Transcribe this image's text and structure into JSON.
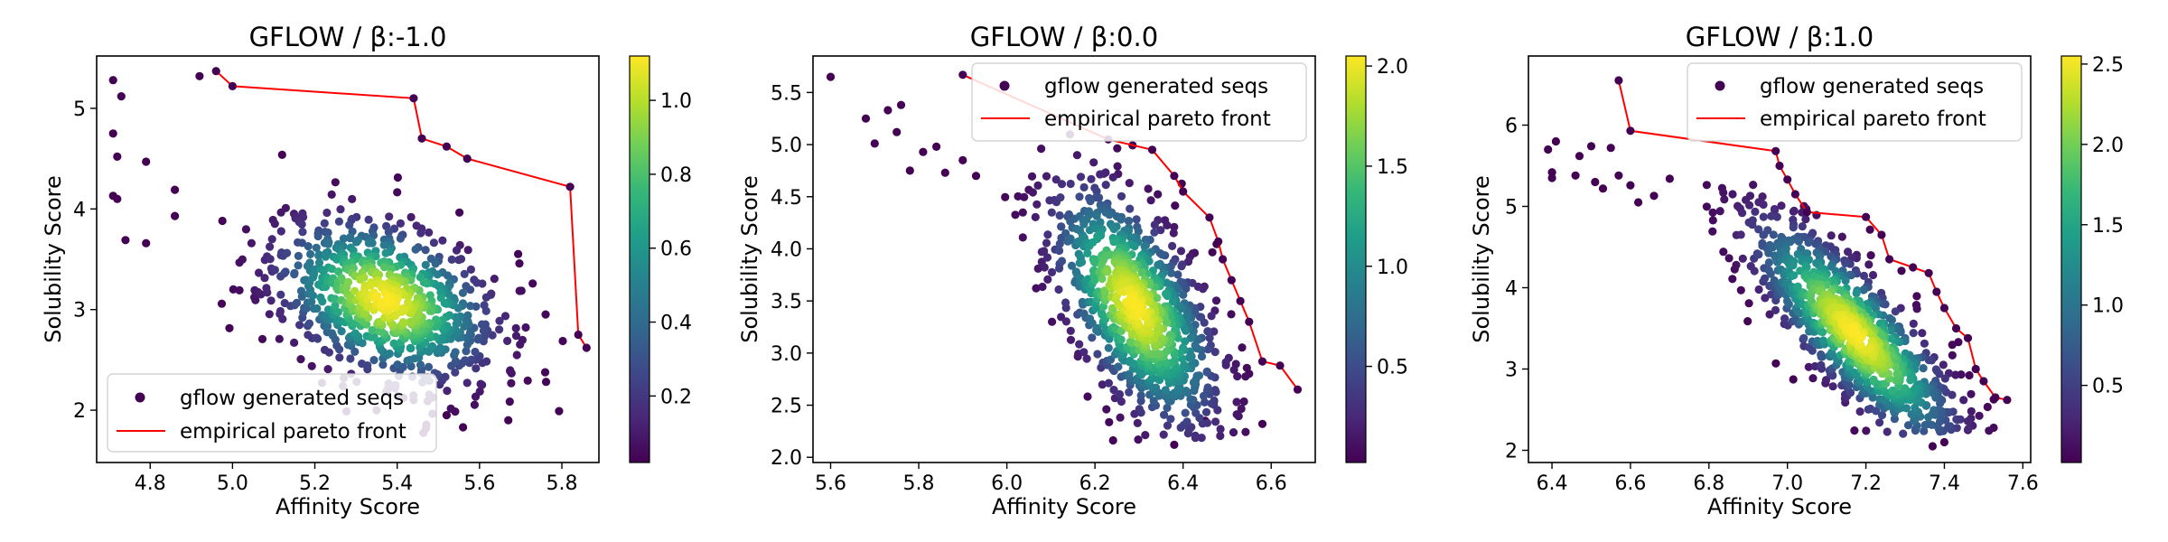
{
  "colormap": [
    "#440154",
    "#482878",
    "#3e4989",
    "#31688e",
    "#26828e",
    "#1f9e89",
    "#35b779",
    "#6ece58",
    "#b5de2b",
    "#fde725"
  ],
  "colors": {
    "pareto_line": "#ff0000",
    "pareto_point": "#440154"
  },
  "chart_data": [
    {
      "type": "scatter",
      "title": "GFLOW / β:-1.0",
      "xlabel": "Affinity Score",
      "ylabel": "Solubility Score",
      "xlim": [
        4.67,
        5.89
      ],
      "ylim": [
        1.48,
        5.52
      ],
      "xticks": [
        4.8,
        5.0,
        5.2,
        5.4,
        5.6,
        5.8
      ],
      "xtick_labels": [
        "4.8",
        "5.0",
        "5.2",
        "5.4",
        "5.6",
        "5.8"
      ],
      "yticks": [
        2,
        3,
        4,
        5
      ],
      "ytick_labels": [
        "2",
        "3",
        "4",
        "5"
      ],
      "colorbar": {
        "min": 0.02,
        "max": 1.12,
        "ticks": [
          0.2,
          0.4,
          0.6,
          0.8,
          1.0
        ],
        "tick_labels": [
          "0.2",
          "0.4",
          "0.6",
          "0.8",
          "1.0"
        ]
      },
      "legend": {
        "position": "lower-left",
        "entries": [
          "gflow generated seqs",
          "empirical pareto front"
        ]
      },
      "cloud": {
        "center": [
          5.37,
          3.1
        ],
        "spread": [
          0.14,
          0.43
        ],
        "corr": -0.35,
        "count": 820,
        "seed": 11,
        "xmin": 4.88,
        "xmax": 5.84,
        "ymin": 1.75,
        "ymax": 5.25
      },
      "scatter_points": [
        {
          "x": 4.71,
          "y": 5.28
        },
        {
          "x": 4.73,
          "y": 5.12
        },
        {
          "x": 4.71,
          "y": 4.75
        },
        {
          "x": 4.72,
          "y": 4.52
        },
        {
          "x": 4.71,
          "y": 4.13
        },
        {
          "x": 4.72,
          "y": 4.1
        },
        {
          "x": 4.74,
          "y": 3.69
        },
        {
          "x": 4.79,
          "y": 3.66
        },
        {
          "x": 4.79,
          "y": 4.47
        },
        {
          "x": 4.86,
          "y": 4.19
        },
        {
          "x": 4.86,
          "y": 3.93
        },
        {
          "x": 4.92,
          "y": 5.32
        },
        {
          "x": 5.44,
          "y": 2.1
        },
        {
          "x": 5.47,
          "y": 1.82
        },
        {
          "x": 5.52,
          "y": 1.95
        },
        {
          "x": 5.56,
          "y": 1.83
        },
        {
          "x": 5.67,
          "y": 1.9
        },
        {
          "x": 5.35,
          "y": 2.0
        }
      ],
      "pareto_front": [
        {
          "x": 4.96,
          "y": 5.37
        },
        {
          "x": 5.0,
          "y": 5.22
        },
        {
          "x": 5.44,
          "y": 5.1
        },
        {
          "x": 5.46,
          "y": 4.7
        },
        {
          "x": 5.52,
          "y": 4.62
        },
        {
          "x": 5.57,
          "y": 4.5
        },
        {
          "x": 5.82,
          "y": 4.22
        },
        {
          "x": 5.84,
          "y": 2.75
        },
        {
          "x": 5.86,
          "y": 2.62
        }
      ]
    },
    {
      "type": "scatter",
      "title": "GFLOW / β:0.0",
      "xlabel": "Affinity Score",
      "ylabel": "Solubility Score",
      "xlim": [
        5.56,
        6.7
      ],
      "ylim": [
        1.95,
        5.85
      ],
      "xticks": [
        5.6,
        5.8,
        6.0,
        6.2,
        6.4,
        6.6
      ],
      "xtick_labels": [
        "5.6",
        "5.8",
        "6.0",
        "6.2",
        "6.4",
        "6.6"
      ],
      "yticks": [
        2.0,
        2.5,
        3.0,
        3.5,
        4.0,
        4.5,
        5.0,
        5.5
      ],
      "ytick_labels": [
        "2.0",
        "2.5",
        "3.0",
        "3.5",
        "4.0",
        "4.5",
        "5.0",
        "5.5"
      ],
      "colorbar": {
        "min": 0.02,
        "max": 2.05,
        "ticks": [
          0.5,
          1.0,
          1.5,
          2.0
        ],
        "tick_labels": [
          "0.5",
          "1.0",
          "1.5",
          "2.0"
        ]
      },
      "legend": {
        "position": "top-right",
        "entries": [
          "gflow generated seqs",
          "empirical pareto front"
        ]
      },
      "cloud": {
        "center": [
          6.29,
          3.45
        ],
        "spread": [
          0.1,
          0.62
        ],
        "corr": -0.6,
        "count": 900,
        "seed": 23,
        "xmin": 5.95,
        "xmax": 6.65,
        "ymin": 2.15,
        "ymax": 5.1
      },
      "scatter_points": [
        {
          "x": 5.6,
          "y": 5.65
        },
        {
          "x": 5.68,
          "y": 5.25
        },
        {
          "x": 5.7,
          "y": 5.01
        },
        {
          "x": 5.73,
          "y": 5.33
        },
        {
          "x": 5.76,
          "y": 5.38
        },
        {
          "x": 5.75,
          "y": 5.12
        },
        {
          "x": 5.78,
          "y": 4.75
        },
        {
          "x": 5.81,
          "y": 4.93
        },
        {
          "x": 5.84,
          "y": 4.98
        },
        {
          "x": 5.86,
          "y": 4.73
        },
        {
          "x": 5.9,
          "y": 4.85
        },
        {
          "x": 5.93,
          "y": 4.7
        },
        {
          "x": 6.38,
          "y": 2.12
        },
        {
          "x": 6.45,
          "y": 2.35
        },
        {
          "x": 6.58,
          "y": 2.32
        }
      ],
      "pareto_front": [
        {
          "x": 5.9,
          "y": 5.67
        },
        {
          "x": 6.23,
          "y": 5.05
        },
        {
          "x": 6.33,
          "y": 4.95
        },
        {
          "x": 6.38,
          "y": 4.7
        },
        {
          "x": 6.4,
          "y": 4.55
        },
        {
          "x": 6.46,
          "y": 4.3
        },
        {
          "x": 6.48,
          "y": 4.07
        },
        {
          "x": 6.49,
          "y": 3.9
        },
        {
          "x": 6.51,
          "y": 3.7
        },
        {
          "x": 6.53,
          "y": 3.5
        },
        {
          "x": 6.55,
          "y": 3.3
        },
        {
          "x": 6.58,
          "y": 2.92
        },
        {
          "x": 6.62,
          "y": 2.88
        },
        {
          "x": 6.66,
          "y": 2.65
        }
      ]
    },
    {
      "type": "scatter",
      "title": "GFLOW / β:1.0",
      "xlabel": "Affinity Score",
      "ylabel": "Solubility Score",
      "xlim": [
        6.34,
        7.62
      ],
      "ylim": [
        1.85,
        6.85
      ],
      "xticks": [
        6.4,
        6.6,
        6.8,
        7.0,
        7.2,
        7.4,
        7.6
      ],
      "xtick_labels": [
        "6.4",
        "6.6",
        "6.8",
        "7.0",
        "7.2",
        "7.4",
        "7.6"
      ],
      "yticks": [
        2,
        3,
        4,
        5,
        6
      ],
      "ytick_labels": [
        "2",
        "3",
        "4",
        "5",
        "6"
      ],
      "colorbar": {
        "min": 0.02,
        "max": 2.55,
        "ticks": [
          0.5,
          1.0,
          1.5,
          2.0,
          2.5
        ],
        "tick_labels": [
          "0.5",
          "1.0",
          "1.5",
          "2.0",
          "2.5"
        ]
      },
      "legend": {
        "position": "top-right",
        "entries": [
          "gflow generated seqs",
          "empirical pareto front"
        ]
      },
      "cloud": {
        "center": [
          7.17,
          3.45
        ],
        "spread": [
          0.14,
          0.75
        ],
        "corr": -0.82,
        "count": 950,
        "seed": 37,
        "xmin": 6.7,
        "xmax": 7.56,
        "ymin": 2.2,
        "ymax": 5.3
      },
      "scatter_points": [
        {
          "x": 6.39,
          "y": 5.7
        },
        {
          "x": 6.4,
          "y": 5.42
        },
        {
          "x": 6.41,
          "y": 5.8
        },
        {
          "x": 6.4,
          "y": 5.35
        },
        {
          "x": 6.47,
          "y": 5.62
        },
        {
          "x": 6.46,
          "y": 5.38
        },
        {
          "x": 6.5,
          "y": 5.74
        },
        {
          "x": 6.51,
          "y": 5.3
        },
        {
          "x": 6.53,
          "y": 5.22
        },
        {
          "x": 6.55,
          "y": 5.72
        },
        {
          "x": 6.57,
          "y": 5.38
        },
        {
          "x": 6.6,
          "y": 5.26
        },
        {
          "x": 6.62,
          "y": 5.05
        },
        {
          "x": 6.66,
          "y": 5.13
        },
        {
          "x": 6.7,
          "y": 5.34
        },
        {
          "x": 7.37,
          "y": 2.05
        },
        {
          "x": 7.4,
          "y": 2.1
        },
        {
          "x": 7.46,
          "y": 2.25
        }
      ],
      "pareto_front": [
        {
          "x": 6.57,
          "y": 6.55
        },
        {
          "x": 6.6,
          "y": 5.93
        },
        {
          "x": 6.97,
          "y": 5.68
        },
        {
          "x": 6.98,
          "y": 5.5
        },
        {
          "x": 7.0,
          "y": 5.33
        },
        {
          "x": 7.02,
          "y": 5.15
        },
        {
          "x": 7.05,
          "y": 4.93
        },
        {
          "x": 7.2,
          "y": 4.87
        },
        {
          "x": 7.24,
          "y": 4.65
        },
        {
          "x": 7.26,
          "y": 4.35
        },
        {
          "x": 7.32,
          "y": 4.25
        },
        {
          "x": 7.36,
          "y": 4.18
        },
        {
          "x": 7.38,
          "y": 3.95
        },
        {
          "x": 7.4,
          "y": 3.75
        },
        {
          "x": 7.43,
          "y": 3.5
        },
        {
          "x": 7.46,
          "y": 3.38
        },
        {
          "x": 7.48,
          "y": 3.0
        },
        {
          "x": 7.5,
          "y": 2.85
        },
        {
          "x": 7.53,
          "y": 2.65
        },
        {
          "x": 7.56,
          "y": 2.62
        }
      ]
    }
  ]
}
